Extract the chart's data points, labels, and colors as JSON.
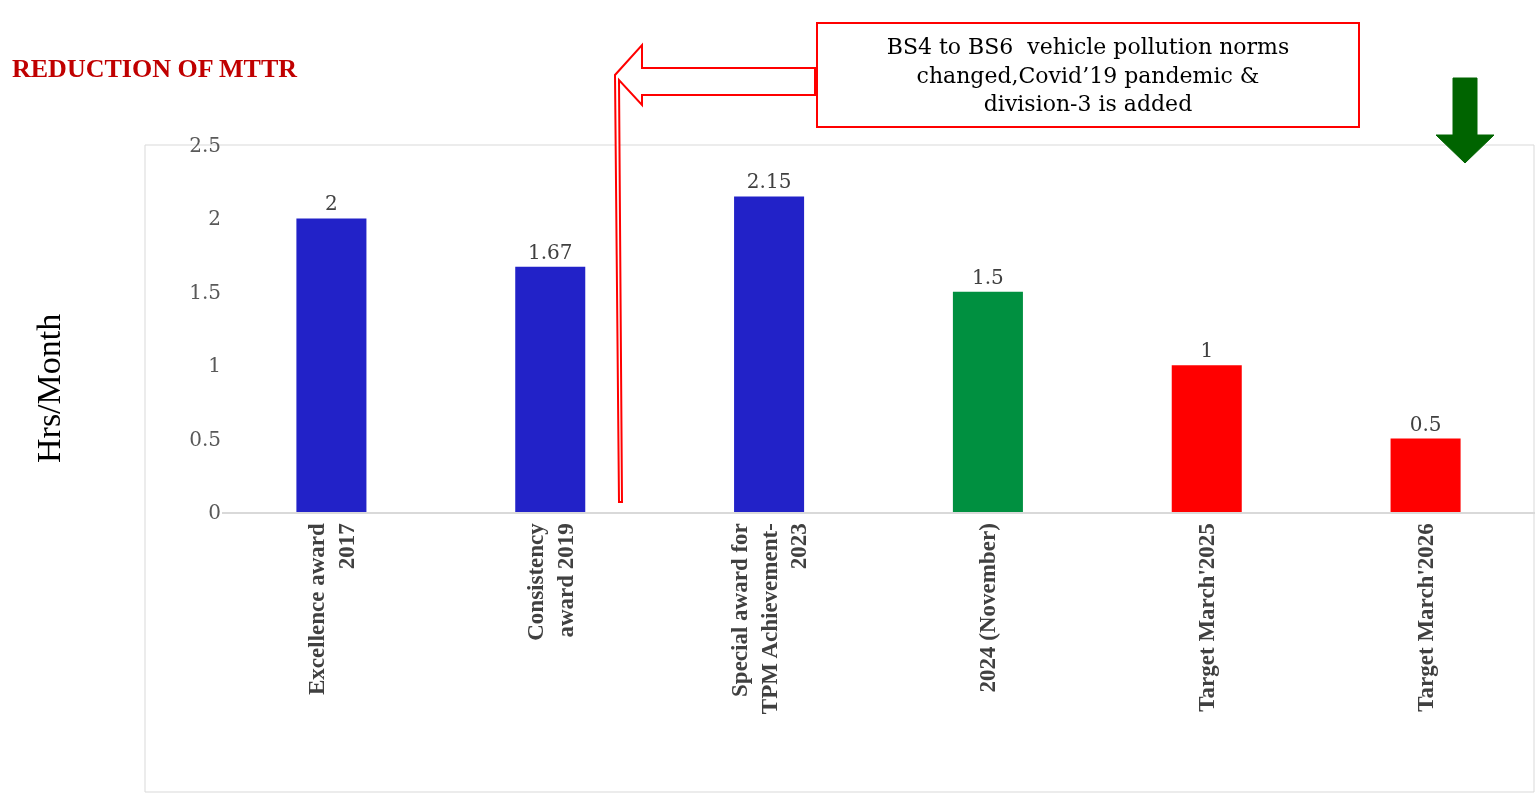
{
  "chart_data": {
    "type": "bar",
    "title": "REDUCTION OF MTTR",
    "ylabel": "Hrs/Month",
    "categories": [
      "Excellence award\n2017",
      "Consistency\naward 2019",
      "Special award for\nTPM Achievement-\n2023",
      "2024 (November)",
      "Target March'2025",
      "Target March'2026"
    ],
    "values": [
      2,
      1.67,
      2.15,
      1.5,
      1,
      0.5
    ],
    "colors": [
      "#2222c8",
      "#2222c8",
      "#2222c8",
      "#009040",
      "#ff0000",
      "#ff0000"
    ],
    "ylim": [
      0,
      2.5
    ],
    "yticks": [
      0,
      0.5,
      1,
      1.5,
      2,
      2.5
    ],
    "grid": false,
    "data_labels": true,
    "annotations": [
      "BS4 to BS6  vehicle pollution norms\nchanged,Covid’19 pandemic &\ndivision-3 is added"
    ]
  }
}
